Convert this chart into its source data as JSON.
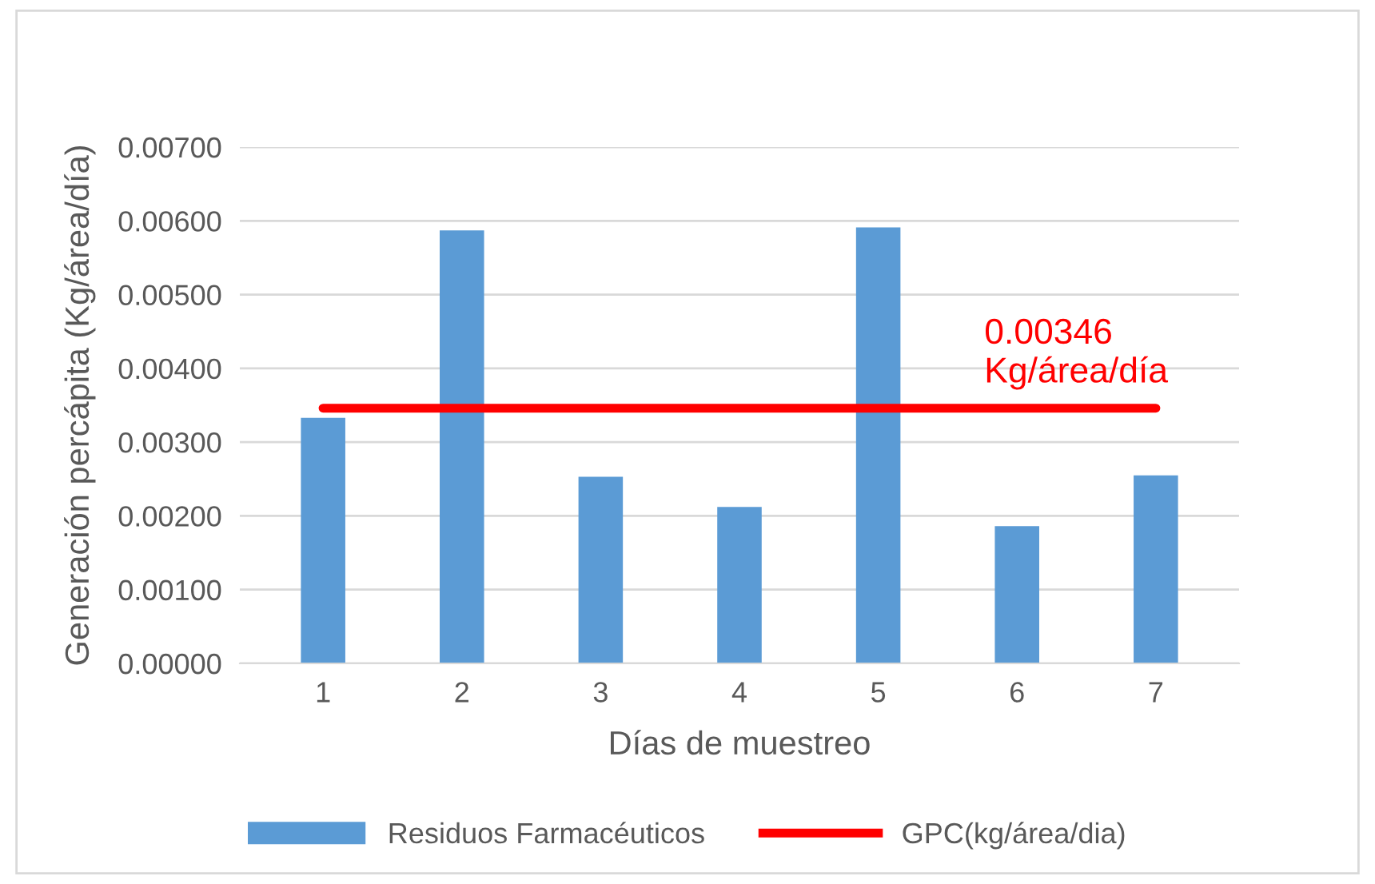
{
  "chart_data": {
    "type": "bar",
    "xlabel": "Días de muestreo",
    "ylabel": "Generación percápita (Kg/área/día)",
    "categories": [
      "1",
      "2",
      "3",
      "4",
      "5",
      "6",
      "7"
    ],
    "series": [
      {
        "name": "Residuos Farmacéuticos",
        "color": "#5b9bd5",
        "values": [
          0.00333,
          0.00587,
          0.00253,
          0.00212,
          0.00591,
          0.00186,
          0.00255
        ]
      },
      {
        "name": "GPC(kg/área/dia)",
        "type": "line",
        "color": "#ff0000",
        "values": [
          0.00346,
          0.00346,
          0.00346,
          0.00346,
          0.00346,
          0.00346,
          0.00346
        ]
      }
    ],
    "annotations": [
      "0.00346\nKg/área/día"
    ],
    "ylim": [
      0,
      0.007
    ],
    "yticks": [
      {
        "value": 0,
        "label": "0.00000"
      },
      {
        "value": 0.001,
        "label": "0.00100"
      },
      {
        "value": 0.002,
        "label": "0.00200"
      },
      {
        "value": 0.003,
        "label": "0.00300"
      },
      {
        "value": 0.004,
        "label": "0.00400"
      },
      {
        "value": 0.005,
        "label": "0.00500"
      },
      {
        "value": 0.006,
        "label": "0.00600"
      },
      {
        "value": 0.007,
        "label": "0.00700"
      }
    ],
    "grid": "y",
    "legend": "bottom",
    "marker": "none"
  }
}
